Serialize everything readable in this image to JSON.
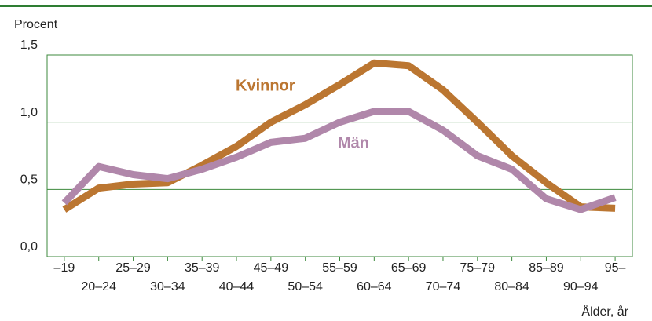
{
  "chart_data": {
    "type": "line",
    "ylabel": "Procent",
    "xlabel": "Ålder, år",
    "categories": [
      "–19",
      "20–24",
      "25–29",
      "30–34",
      "35–39",
      "40–44",
      "45–49",
      "50–54",
      "55–59",
      "60–64",
      "65–69",
      "70–74",
      "75–79",
      "80–84",
      "85–89",
      "90–94",
      "95–"
    ],
    "series": [
      {
        "name": "Kvinnor",
        "color": "#bb7631",
        "values": [
          0.35,
          0.51,
          0.54,
          0.55,
          0.68,
          0.82,
          1.0,
          1.13,
          1.28,
          1.44,
          1.42,
          1.24,
          1.0,
          0.75,
          0.55,
          0.37,
          0.36
        ]
      },
      {
        "name": "Män",
        "color": "#b087aa",
        "values": [
          0.4,
          0.67,
          0.61,
          0.58,
          0.65,
          0.74,
          0.85,
          0.88,
          1.0,
          1.08,
          1.08,
          0.94,
          0.75,
          0.65,
          0.43,
          0.35,
          0.44
        ]
      }
    ],
    "ylim": [
      0,
      1.5
    ],
    "yticks": [
      {
        "value": 0,
        "label": "0,0"
      },
      {
        "value": 0.5,
        "label": "0,5"
      },
      {
        "value": 1,
        "label": "1,0"
      },
      {
        "value": 1.5,
        "label": "1,5"
      }
    ],
    "grid": true
  }
}
